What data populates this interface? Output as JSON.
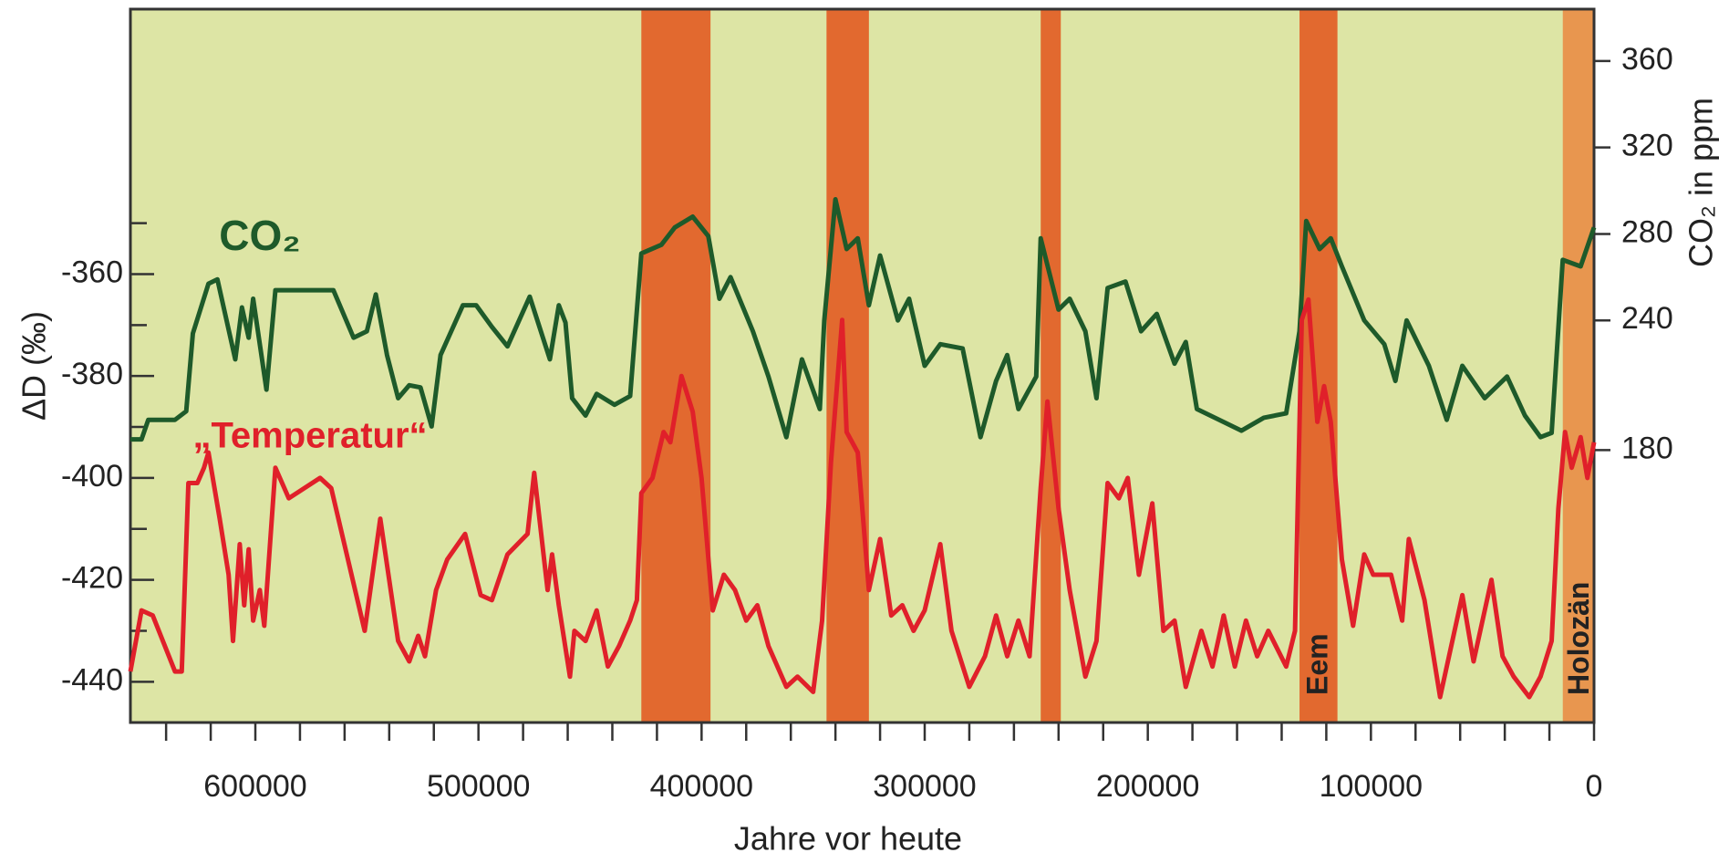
{
  "chart_data": {
    "type": "line",
    "x_label": "Jahre vor heute",
    "y_label": "ΔD (‰)",
    "y2_label": "CO₂ in ppm",
    "xlim": [
      656000,
      0
    ],
    "xticks": [
      600000,
      500000,
      400000,
      300000,
      200000,
      100000,
      0
    ],
    "xminorticks": [
      640000,
      620000,
      580000,
      560000,
      540000,
      520000,
      480000,
      460000,
      440000,
      420000,
      380000,
      360000,
      340000,
      320000,
      280000,
      260000,
      240000,
      220000,
      180000,
      160000,
      140000,
      120000,
      80000,
      60000,
      40000,
      20000
    ],
    "ylim": [
      -448,
      -308
    ],
    "yticks": [
      -360,
      -380,
      -400,
      -420,
      -440
    ],
    "yminorticks": [
      -350,
      -370,
      -390,
      -410,
      -430
    ],
    "y2lim": [
      54,
      384
    ],
    "y2ticks": [
      360,
      320,
      280,
      240,
      180
    ],
    "background": "#dde5a5",
    "bands": [
      {
        "from": 427000,
        "to": 396000,
        "color": "#e2692f"
      },
      {
        "from": 344000,
        "to": 325000,
        "color": "#e2692f"
      },
      {
        "from": 248000,
        "to": 239000,
        "color": "#e2692f"
      },
      {
        "from": 132000,
        "to": 115000,
        "color": "#e2692f"
      },
      {
        "from": 14000,
        "to": 0,
        "color": "#e8964f"
      }
    ],
    "annotations": [
      {
        "text": "Eem",
        "x": 123000
      },
      {
        "text": "Holozän",
        "x": 6000
      }
    ],
    "series": [
      {
        "name": "CO₂",
        "color": "#1e5a2a",
        "axis": "y2",
        "x": [
          656000,
          651000,
          648000,
          636000,
          631000,
          628000,
          621000,
          617000,
          609000,
          606000,
          603000,
          601000,
          595000,
          591000,
          565000,
          556000,
          550000,
          546000,
          541000,
          536000,
          531000,
          526000,
          521000,
          517000,
          507000,
          501000,
          494000,
          487000,
          477000,
          468000,
          464000,
          461000,
          458000,
          452000,
          447000,
          439000,
          432000,
          427000,
          418000,
          412000,
          404000,
          397000,
          392000,
          387000,
          377000,
          370000,
          362000,
          355000,
          347000,
          345000,
          340000,
          335000,
          330000,
          325000,
          320000,
          312000,
          307000,
          300000,
          293000,
          283000,
          275000,
          268000,
          263000,
          258000,
          250000,
          248000,
          240000,
          235000,
          228000,
          223000,
          218000,
          210000,
          203000,
          196000,
          188000,
          183000,
          178000,
          168000,
          158000,
          148000,
          138000,
          132000,
          129000,
          123000,
          118000,
          113000,
          103000,
          94000,
          89000,
          84000,
          74000,
          66000,
          59000,
          49000,
          39000,
          31000,
          24000,
          19000,
          14000,
          6000,
          0
        ],
        "values": [
          185,
          185,
          194,
          194,
          198,
          234,
          257,
          259,
          222,
          246,
          232,
          250,
          208,
          254,
          254,
          232,
          235,
          252,
          224,
          204,
          210,
          209,
          191,
          224,
          247,
          247,
          237,
          228,
          251,
          222,
          247,
          239,
          204,
          196,
          206,
          201,
          205,
          271,
          275,
          283,
          288,
          279,
          250,
          260,
          235,
          214,
          186,
          222,
          199,
          240,
          296,
          273,
          278,
          247,
          270,
          240,
          250,
          219,
          229,
          227,
          186,
          212,
          224,
          199,
          214,
          278,
          245,
          250,
          235,
          204,
          255,
          258,
          235,
          243,
          220,
          230,
          199,
          194,
          189,
          195,
          197,
          235,
          286,
          273,
          278,
          265,
          240,
          229,
          212,
          240,
          219,
          194,
          219,
          204,
          214,
          196,
          186,
          188,
          268,
          265,
          283
        ]
      },
      {
        "name": "„Temperatur“",
        "color": "#e0202a",
        "x": [
          656000,
          651000,
          646000,
          636000,
          633000,
          630000,
          626000,
          623000,
          621000,
          616000,
          612000,
          610000,
          607000,
          605000,
          603000,
          601000,
          598000,
          596000,
          591000,
          585000,
          571000,
          566000,
          551000,
          544000,
          536000,
          531000,
          527000,
          524000,
          519000,
          514000,
          506000,
          499000,
          494000,
          487000,
          478000,
          475000,
          469000,
          467000,
          464000,
          459000,
          457000,
          452000,
          447000,
          442000,
          437000,
          432000,
          429000,
          427000,
          422000,
          417000,
          414000,
          409000,
          404000,
          400000,
          395000,
          390000,
          385000,
          380000,
          375000,
          370000,
          362000,
          357000,
          350000,
          346000,
          342000,
          337000,
          335000,
          330000,
          325000,
          320000,
          315000,
          310000,
          305000,
          300000,
          293000,
          288000,
          280000,
          273000,
          268000,
          263000,
          258000,
          253000,
          248000,
          245000,
          240000,
          235000,
          228000,
          223000,
          218000,
          213000,
          209000,
          204000,
          198000,
          193000,
          188000,
          183000,
          176000,
          171000,
          166000,
          161000,
          156000,
          151000,
          146000,
          138000,
          134000,
          131000,
          128000,
          124000,
          121000,
          118000,
          113000,
          108000,
          103000,
          99000,
          91000,
          86000,
          83000,
          76000,
          69000,
          59000,
          54000,
          46000,
          41000,
          36000,
          29000,
          24000,
          19000,
          16000,
          13000,
          10000,
          6000,
          3000,
          0
        ],
        "values": [
          -438,
          -426,
          -427,
          -438,
          -438,
          -401,
          -401,
          -398,
          -395,
          -408,
          -419,
          -432,
          -413,
          -425,
          -414,
          -428,
          -422,
          -429,
          -398,
          -404,
          -400,
          -402,
          -430,
          -408,
          -432,
          -436,
          -431,
          -435,
          -422,
          -416,
          -411,
          -423,
          -424,
          -415,
          -411,
          -399,
          -422,
          -415,
          -425,
          -439,
          -430,
          -432,
          -426,
          -437,
          -433,
          -428,
          -424,
          -403,
          -400,
          -391,
          -393,
          -380,
          -387,
          -400,
          -426,
          -419,
          -422,
          -428,
          -425,
          -433,
          -441,
          -439,
          -442,
          -428,
          -397,
          -369,
          -391,
          -395,
          -422,
          -412,
          -427,
          -425,
          -430,
          -426,
          -413,
          -430,
          -441,
          -435,
          -427,
          -435,
          -428,
          -435,
          -402,
          -385,
          -406,
          -422,
          -439,
          -432,
          -401,
          -404,
          -400,
          -419,
          -405,
          -430,
          -428,
          -441,
          -430,
          -437,
          -427,
          -437,
          -428,
          -435,
          -430,
          -437,
          -430,
          -369,
          -365,
          -389,
          -382,
          -389,
          -416,
          -429,
          -415,
          -419,
          -419,
          -428,
          -412,
          -424,
          -443,
          -423,
          -436,
          -420,
          -435,
          -439,
          -443,
          -439,
          -432,
          -406,
          -391,
          -398,
          -392,
          -400,
          -393
        ]
      }
    ]
  }
}
